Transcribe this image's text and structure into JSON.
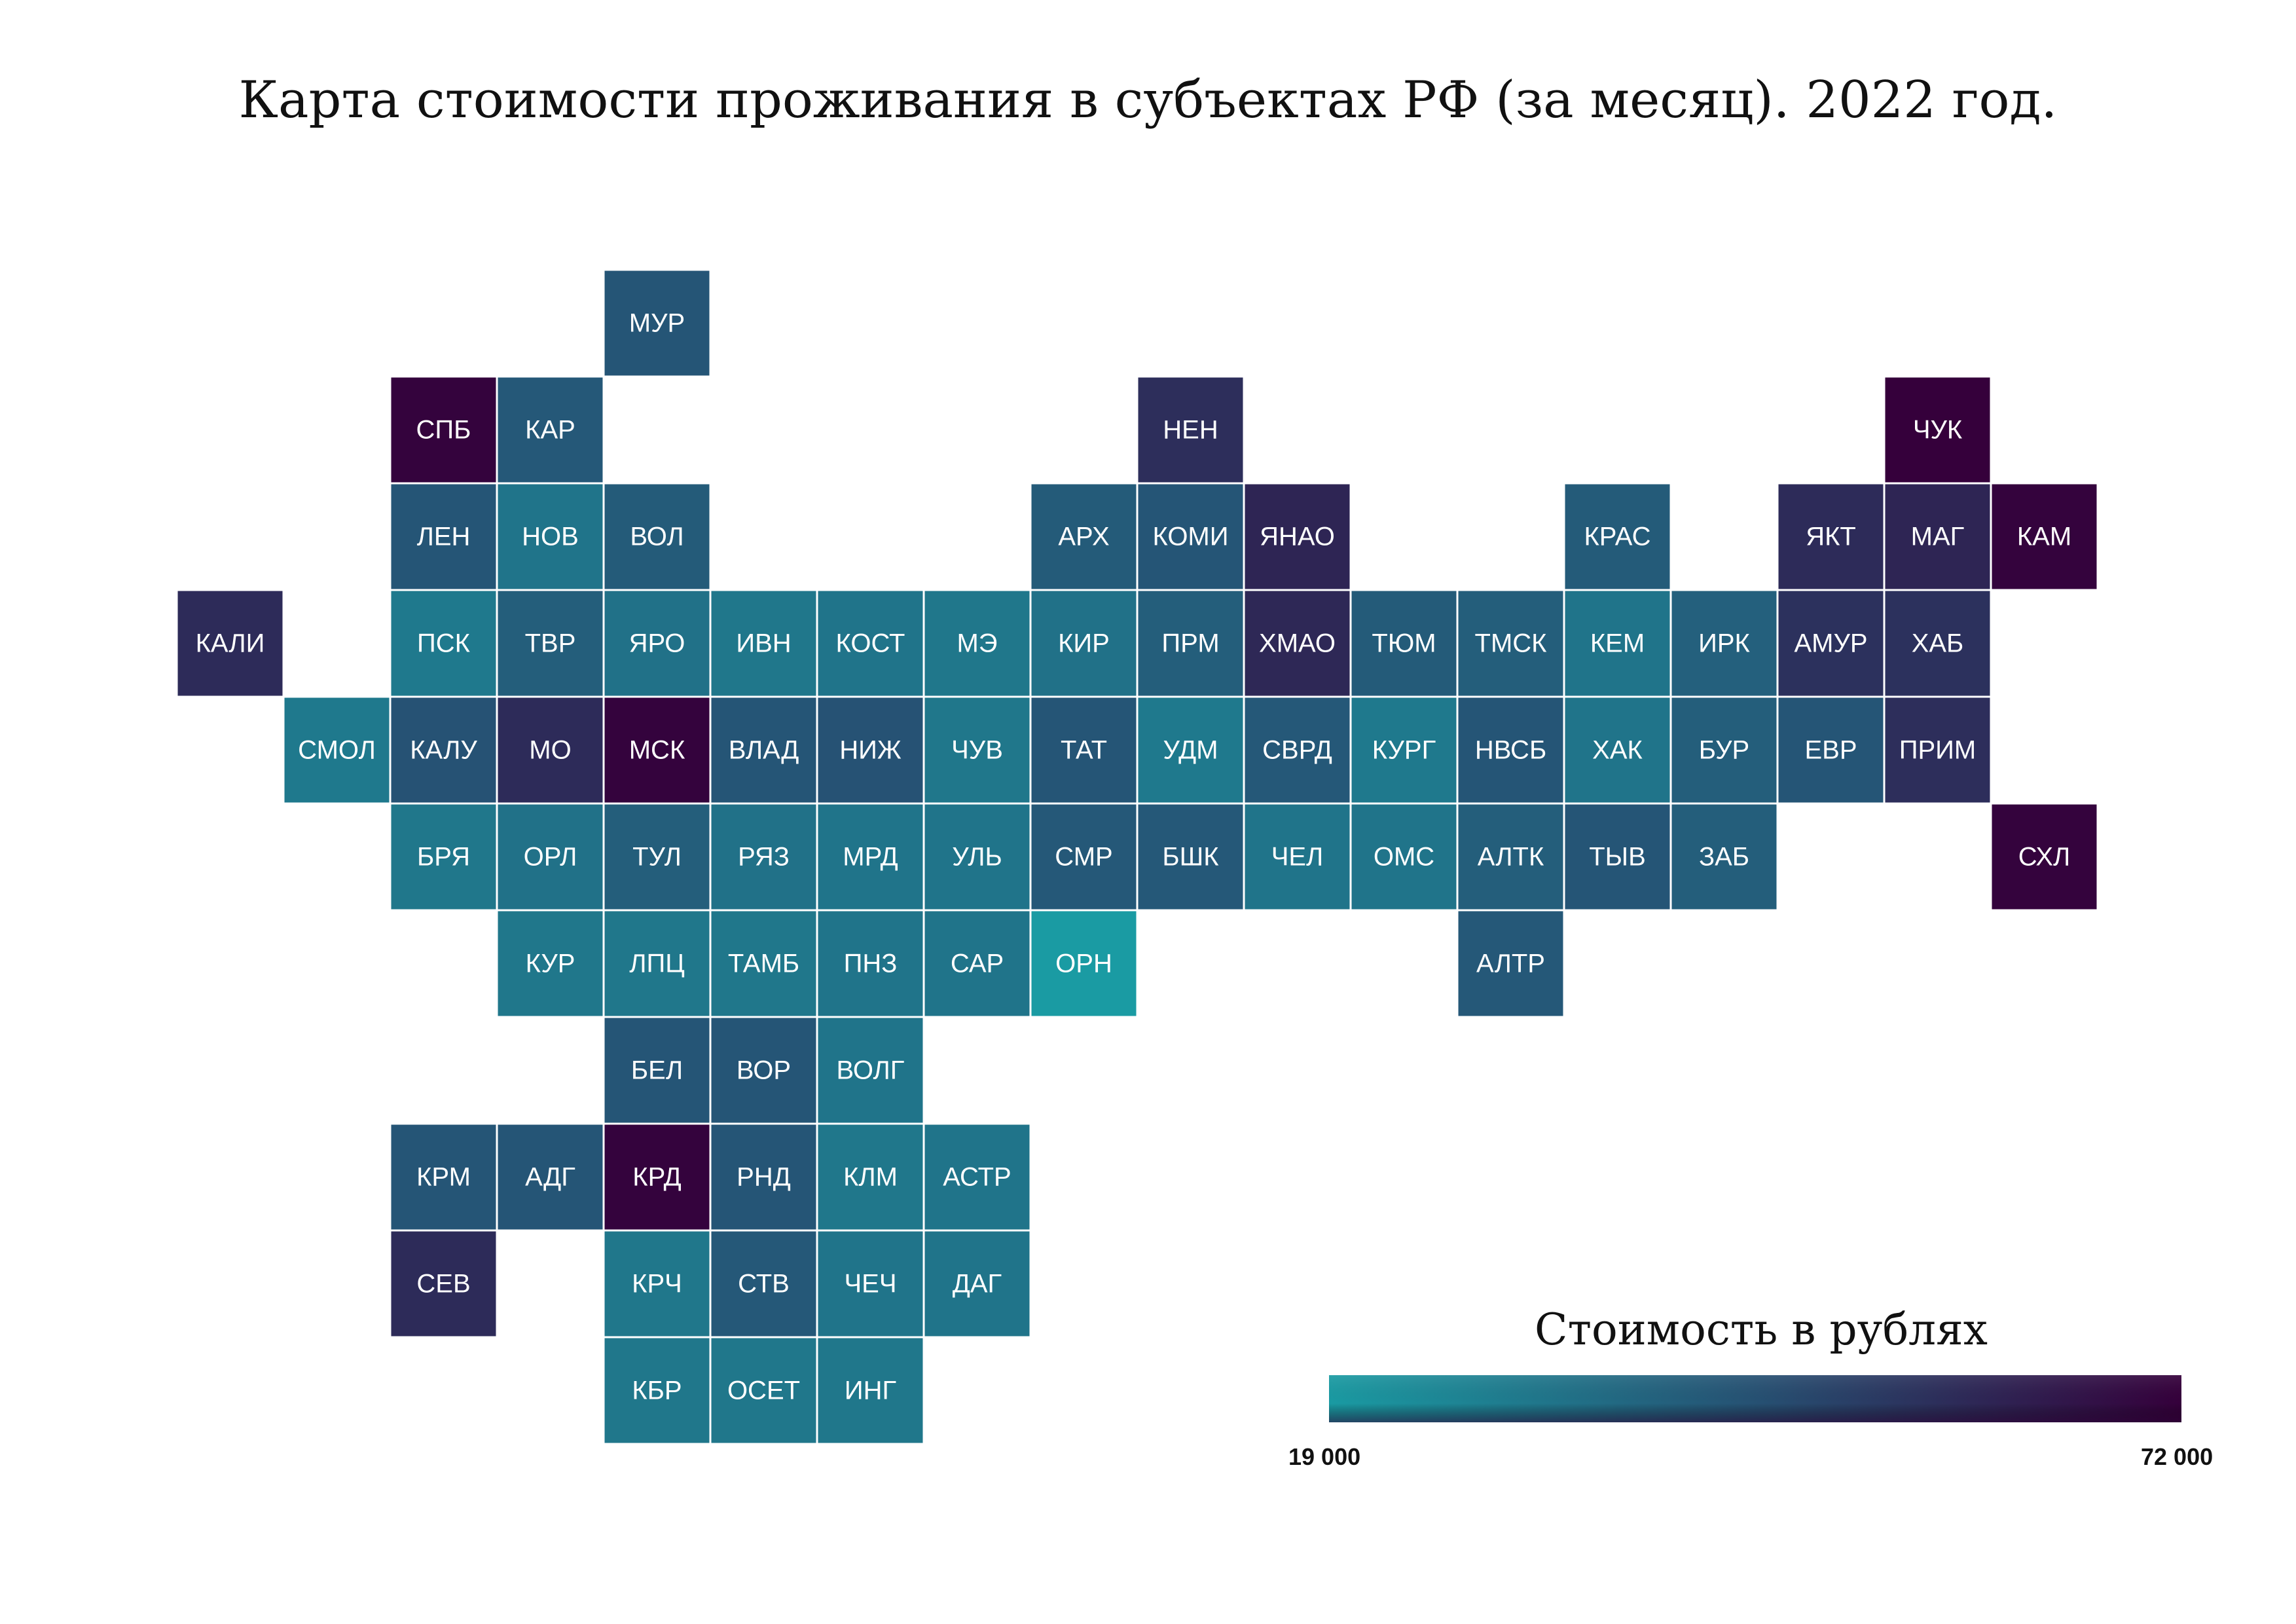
{
  "title": "Карта стоимости проживания в субъектах РФ (за месяц). 2022 год.",
  "colors": {
    "min": "#1a9ba3",
    "mid": "#265173",
    "max": "#35003b",
    "label": "#ffffff",
    "border": "#ffffff"
  },
  "legend": {
    "title": "Стоимость в рублях",
    "min_label": "19 000",
    "max_label": "72 000",
    "min_value": 19000,
    "max_value": 72000
  },
  "chart_data": {
    "type": "heatmap",
    "description_of_encoding": "tile grid map; color intensity encodes monthly cost",
    "regions": [
      {
        "label": "МУР",
        "col": 5,
        "row": 0,
        "value": 44000
      },
      {
        "label": "СПБ",
        "col": 3,
        "row": 1,
        "value": 71000
      },
      {
        "label": "КАР",
        "col": 4,
        "row": 1,
        "value": 43000
      },
      {
        "label": "НЕН",
        "col": 10,
        "row": 1,
        "value": 57000
      },
      {
        "label": "ЧУК",
        "col": 17,
        "row": 1,
        "value": 72000
      },
      {
        "label": "ЛЕН",
        "col": 3,
        "row": 2,
        "value": 44000
      },
      {
        "label": "НОВ",
        "col": 4,
        "row": 2,
        "value": 33000
      },
      {
        "label": "ВОЛ",
        "col": 5,
        "row": 2,
        "value": 42000
      },
      {
        "label": "АРХ",
        "col": 9,
        "row": 2,
        "value": 42000
      },
      {
        "label": "КОМИ",
        "col": 10,
        "row": 2,
        "value": 44000
      },
      {
        "label": "ЯНАО",
        "col": 11,
        "row": 2,
        "value": 60000
      },
      {
        "label": "КРАС",
        "col": 14,
        "row": 2,
        "value": 42000
      },
      {
        "label": "ЯКТ",
        "col": 16,
        "row": 2,
        "value": 58000
      },
      {
        "label": "МАГ",
        "col": 17,
        "row": 2,
        "value": 60000
      },
      {
        "label": "КАМ",
        "col": 18,
        "row": 2,
        "value": 71000
      },
      {
        "label": "КАЛИ",
        "col": 1,
        "row": 3,
        "value": 58000
      },
      {
        "label": "ПСК",
        "col": 3,
        "row": 3,
        "value": 31000
      },
      {
        "label": "ТВР",
        "col": 4,
        "row": 3,
        "value": 41000
      },
      {
        "label": "ЯРО",
        "col": 5,
        "row": 3,
        "value": 34000
      },
      {
        "label": "ИВН",
        "col": 6,
        "row": 3,
        "value": 32000
      },
      {
        "label": "КОСТ",
        "col": 7,
        "row": 3,
        "value": 33000
      },
      {
        "label": "МЭ",
        "col": 8,
        "row": 3,
        "value": 32000
      },
      {
        "label": "КИР",
        "col": 9,
        "row": 3,
        "value": 34000
      },
      {
        "label": "ПРМ",
        "col": 10,
        "row": 3,
        "value": 41000
      },
      {
        "label": "ХМАО",
        "col": 11,
        "row": 3,
        "value": 59000
      },
      {
        "label": "ТЮМ",
        "col": 12,
        "row": 3,
        "value": 42000
      },
      {
        "label": "ТМСК",
        "col": 13,
        "row": 3,
        "value": 41000
      },
      {
        "label": "КЕМ",
        "col": 14,
        "row": 3,
        "value": 33000
      },
      {
        "label": "ИРК",
        "col": 15,
        "row": 3,
        "value": 40000
      },
      {
        "label": "АМУР",
        "col": 16,
        "row": 3,
        "value": 56000
      },
      {
        "label": "ХАБ",
        "col": 17,
        "row": 3,
        "value": 56000
      },
      {
        "label": "СМОЛ",
        "col": 2,
        "row": 4,
        "value": 31000
      },
      {
        "label": "КАЛУ",
        "col": 3,
        "row": 4,
        "value": 45000
      },
      {
        "label": "МО",
        "col": 4,
        "row": 4,
        "value": 58000
      },
      {
        "label": "МСК",
        "col": 5,
        "row": 4,
        "value": 71000
      },
      {
        "label": "ВЛАД",
        "col": 6,
        "row": 4,
        "value": 44000
      },
      {
        "label": "НИЖ",
        "col": 7,
        "row": 4,
        "value": 45000
      },
      {
        "label": "ЧУВ",
        "col": 8,
        "row": 4,
        "value": 32000
      },
      {
        "label": "ТАТ",
        "col": 9,
        "row": 4,
        "value": 44000
      },
      {
        "label": "УДМ",
        "col": 10,
        "row": 4,
        "value": 31000
      },
      {
        "label": "СВРД",
        "col": 11,
        "row": 4,
        "value": 43000
      },
      {
        "label": "КУРГ",
        "col": 12,
        "row": 4,
        "value": 31000
      },
      {
        "label": "НВСБ",
        "col": 13,
        "row": 4,
        "value": 44000
      },
      {
        "label": "ХАК",
        "col": 14,
        "row": 4,
        "value": 33000
      },
      {
        "label": "БУР",
        "col": 15,
        "row": 4,
        "value": 41000
      },
      {
        "label": "ЕВР",
        "col": 16,
        "row": 4,
        "value": 44000
      },
      {
        "label": "ПРИМ",
        "col": 17,
        "row": 4,
        "value": 57000
      },
      {
        "label": "БРЯ",
        "col": 3,
        "row": 5,
        "value": 32000
      },
      {
        "label": "ОРЛ",
        "col": 4,
        "row": 5,
        "value": 34000
      },
      {
        "label": "ТУЛ",
        "col": 5,
        "row": 5,
        "value": 41000
      },
      {
        "label": "РЯЗ",
        "col": 6,
        "row": 5,
        "value": 34000
      },
      {
        "label": "МРД",
        "col": 7,
        "row": 5,
        "value": 33000
      },
      {
        "label": "УЛЬ",
        "col": 8,
        "row": 5,
        "value": 33000
      },
      {
        "label": "СМР",
        "col": 9,
        "row": 5,
        "value": 43000
      },
      {
        "label": "БШК",
        "col": 10,
        "row": 5,
        "value": 43000
      },
      {
        "label": "ЧЕЛ",
        "col": 11,
        "row": 5,
        "value": 33000
      },
      {
        "label": "ОМС",
        "col": 12,
        "row": 5,
        "value": 33000
      },
      {
        "label": "АЛТК",
        "col": 13,
        "row": 5,
        "value": 41000
      },
      {
        "label": "ТЫВ",
        "col": 14,
        "row": 5,
        "value": 44000
      },
      {
        "label": "ЗАБ",
        "col": 15,
        "row": 5,
        "value": 41000
      },
      {
        "label": "СХЛ",
        "col": 18,
        "row": 5,
        "value": 71000
      },
      {
        "label": "КУР",
        "col": 4,
        "row": 6,
        "value": 32000
      },
      {
        "label": "ЛПЦ",
        "col": 5,
        "row": 6,
        "value": 32000
      },
      {
        "label": "ТАМБ",
        "col": 6,
        "row": 6,
        "value": 32000
      },
      {
        "label": "ПНЗ",
        "col": 7,
        "row": 6,
        "value": 33000
      },
      {
        "label": "САР",
        "col": 8,
        "row": 6,
        "value": 33000
      },
      {
        "label": "ОРН",
        "col": 9,
        "row": 6,
        "value": 19000
      },
      {
        "label": "АЛТР",
        "col": 13,
        "row": 6,
        "value": 43000
      },
      {
        "label": "БЕЛ",
        "col": 5,
        "row": 7,
        "value": 44000
      },
      {
        "label": "ВОР",
        "col": 6,
        "row": 7,
        "value": 44000
      },
      {
        "label": "ВОЛГ",
        "col": 7,
        "row": 7,
        "value": 33000
      },
      {
        "label": "КРМ",
        "col": 3,
        "row": 8,
        "value": 44000
      },
      {
        "label": "АДГ",
        "col": 4,
        "row": 8,
        "value": 44000
      },
      {
        "label": "КРД",
        "col": 5,
        "row": 8,
        "value": 71000
      },
      {
        "label": "РНД",
        "col": 6,
        "row": 8,
        "value": 44000
      },
      {
        "label": "КЛМ",
        "col": 7,
        "row": 8,
        "value": 32000
      },
      {
        "label": "АСТР",
        "col": 8,
        "row": 8,
        "value": 33000
      },
      {
        "label": "СЕВ",
        "col": 3,
        "row": 9,
        "value": 58000
      },
      {
        "label": "КРЧ",
        "col": 5,
        "row": 9,
        "value": 32000
      },
      {
        "label": "СТВ",
        "col": 6,
        "row": 9,
        "value": 43000
      },
      {
        "label": "ЧЕЧ",
        "col": 7,
        "row": 9,
        "value": 33000
      },
      {
        "label": "ДАГ",
        "col": 8,
        "row": 9,
        "value": 33000
      },
      {
        "label": "КБР",
        "col": 5,
        "row": 10,
        "value": 32000
      },
      {
        "label": "ОСЕТ",
        "col": 6,
        "row": 10,
        "value": 32000
      },
      {
        "label": "ИНГ",
        "col": 7,
        "row": 10,
        "value": 32000
      }
    ]
  }
}
